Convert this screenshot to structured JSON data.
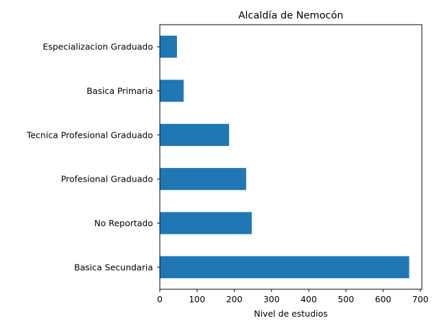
{
  "chart_data": {
    "type": "bar",
    "orientation": "horizontal",
    "title": "Alcaldía de Nemocón",
    "xlabel": "Nivel de estudios",
    "ylabel": "",
    "categories": [
      "Especializacion Graduado",
      "Basica Primaria",
      "Tecnica Profesional Graduado",
      "Profesional Graduado",
      "No Reportado",
      "Basica Secundaria"
    ],
    "values": [
      46,
      64,
      186,
      232,
      247,
      670
    ],
    "xlim": [
      0,
      704
    ],
    "xticks": [
      0,
      100,
      200,
      300,
      400,
      500,
      600,
      700
    ],
    "grid": false,
    "legend": "none",
    "bar_color": "#1f77b4"
  }
}
